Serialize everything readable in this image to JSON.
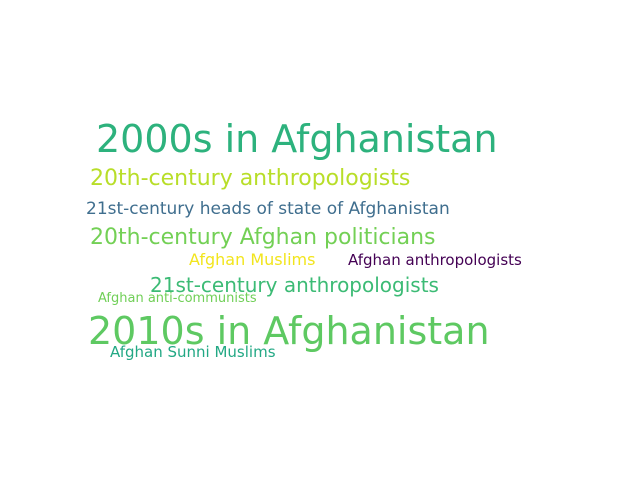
{
  "words": [
    {
      "text": "2000s in Afghanistan",
      "color": "#2db27d"
    },
    {
      "text": "20th-century anthropologists",
      "color": "#b8de29"
    },
    {
      "text": "21st-century heads of state of Afghanistan",
      "color": "#3f6e8e"
    },
    {
      "text": "20th-century Afghan politicians",
      "color": "#73d055"
    },
    {
      "text": "Afghan Muslims",
      "color": "#f2e51d"
    },
    {
      "text": "Afghan anthropologists",
      "color": "#440154"
    },
    {
      "text": "21st-century anthropologists",
      "color": "#3cbb75"
    },
    {
      "text": "Afghan anti-communists",
      "color": "#70cf57"
    },
    {
      "text": "2010s in Afghanistan",
      "color": "#5ec962"
    },
    {
      "text": "Afghan Sunni Muslims",
      "color": "#22a884"
    }
  ]
}
